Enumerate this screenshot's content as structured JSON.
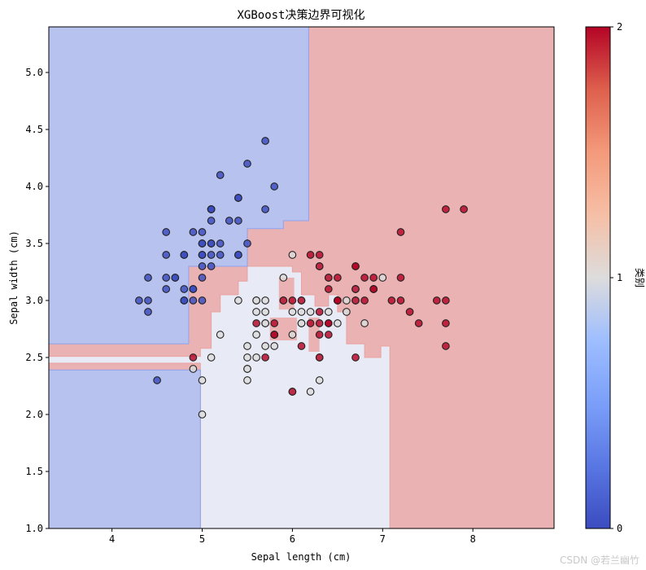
{
  "chart_data": {
    "type": "scatter",
    "title": "XGBoost决策边界可视化",
    "xlabel": "Sepal length (cm)",
    "ylabel": "Sepal width (cm)",
    "xlim": [
      3.3,
      8.9
    ],
    "ylim": [
      1.0,
      5.4
    ],
    "x_ticks": [
      "4",
      "5",
      "6",
      "7",
      "8"
    ],
    "y_ticks": [
      "1.0",
      "1.5",
      "2.0",
      "2.5",
      "3.0",
      "3.5",
      "4.0",
      "4.5",
      "5.0"
    ],
    "grid": false,
    "colorbar": {
      "label": "类别",
      "ticks": [
        "0",
        "1",
        "2"
      ],
      "colormap": "coolwarm",
      "colors": [
        "#3b4cc0",
        "#dddcdc",
        "#b40426"
      ]
    },
    "region_colors": [
      "#b7c2ee",
      "#e8ebf6",
      "#eab2b2"
    ],
    "region_edge_colors": [
      "#8fa1ee",
      "#e9a29f"
    ],
    "class0_points": [
      [
        5.1,
        3.5
      ],
      [
        4.9,
        3.0
      ],
      [
        4.7,
        3.2
      ],
      [
        4.6,
        3.1
      ],
      [
        5.0,
        3.6
      ],
      [
        5.4,
        3.9
      ],
      [
        4.6,
        3.4
      ],
      [
        5.0,
        3.4
      ],
      [
        4.4,
        2.9
      ],
      [
        4.9,
        3.1
      ],
      [
        5.4,
        3.7
      ],
      [
        4.8,
        3.4
      ],
      [
        4.8,
        3.0
      ],
      [
        4.3,
        3.0
      ],
      [
        5.8,
        4.0
      ],
      [
        5.7,
        4.4
      ],
      [
        5.4,
        3.9
      ],
      [
        5.1,
        3.5
      ],
      [
        5.7,
        3.8
      ],
      [
        5.1,
        3.8
      ],
      [
        5.4,
        3.4
      ],
      [
        5.1,
        3.7
      ],
      [
        4.6,
        3.6
      ],
      [
        5.1,
        3.3
      ],
      [
        4.8,
        3.4
      ],
      [
        5.0,
        3.0
      ],
      [
        5.0,
        3.4
      ],
      [
        5.2,
        3.5
      ],
      [
        5.2,
        3.4
      ],
      [
        4.7,
        3.2
      ],
      [
        4.8,
        3.1
      ],
      [
        5.4,
        3.4
      ],
      [
        5.2,
        4.1
      ],
      [
        5.5,
        4.2
      ],
      [
        4.9,
        3.1
      ],
      [
        5.0,
        3.2
      ],
      [
        5.5,
        3.5
      ],
      [
        4.9,
        3.6
      ],
      [
        4.4,
        3.0
      ],
      [
        5.1,
        3.4
      ],
      [
        5.0,
        3.5
      ],
      [
        4.5,
        2.3
      ],
      [
        4.4,
        3.2
      ],
      [
        5.0,
        3.5
      ],
      [
        5.1,
        3.8
      ],
      [
        4.8,
        3.0
      ],
      [
        5.1,
        3.8
      ],
      [
        4.6,
        3.2
      ],
      [
        5.3,
        3.7
      ],
      [
        5.0,
        3.3
      ]
    ],
    "class1_points": [
      [
        7.0,
        3.2
      ],
      [
        6.4,
        3.2
      ],
      [
        6.9,
        3.1
      ],
      [
        5.5,
        2.3
      ],
      [
        6.5,
        2.8
      ],
      [
        5.7,
        2.8
      ],
      [
        6.3,
        3.3
      ],
      [
        4.9,
        2.4
      ],
      [
        6.6,
        2.9
      ],
      [
        5.2,
        2.7
      ],
      [
        5.0,
        2.0
      ],
      [
        5.9,
        3.0
      ],
      [
        6.0,
        2.2
      ],
      [
        6.1,
        2.9
      ],
      [
        5.6,
        2.9
      ],
      [
        6.7,
        3.1
      ],
      [
        5.6,
        3.0
      ],
      [
        5.8,
        2.7
      ],
      [
        6.2,
        2.2
      ],
      [
        5.6,
        2.5
      ],
      [
        5.9,
        3.2
      ],
      [
        6.1,
        2.8
      ],
      [
        6.3,
        2.5
      ],
      [
        6.1,
        2.8
      ],
      [
        6.4,
        2.9
      ],
      [
        6.6,
        3.0
      ],
      [
        6.8,
        2.8
      ],
      [
        6.7,
        3.0
      ],
      [
        6.0,
        2.9
      ],
      [
        5.7,
        2.6
      ],
      [
        5.5,
        2.4
      ],
      [
        5.5,
        2.4
      ],
      [
        5.8,
        2.7
      ],
      [
        6.0,
        2.7
      ],
      [
        5.4,
        3.0
      ],
      [
        6.0,
        3.4
      ],
      [
        6.7,
        3.1
      ],
      [
        6.3,
        2.3
      ],
      [
        5.6,
        3.0
      ],
      [
        5.5,
        2.5
      ],
      [
        5.5,
        2.6
      ],
      [
        6.1,
        3.0
      ],
      [
        5.8,
        2.6
      ],
      [
        5.0,
        2.3
      ],
      [
        5.6,
        2.7
      ],
      [
        5.7,
        3.0
      ],
      [
        5.7,
        2.9
      ],
      [
        6.2,
        2.9
      ],
      [
        5.1,
        2.5
      ],
      [
        5.7,
        2.8
      ]
    ],
    "class2_points": [
      [
        6.3,
        3.3
      ],
      [
        5.8,
        2.7
      ],
      [
        7.1,
        3.0
      ],
      [
        6.3,
        2.9
      ],
      [
        6.5,
        3.0
      ],
      [
        7.6,
        3.0
      ],
      [
        4.9,
        2.5
      ],
      [
        7.3,
        2.9
      ],
      [
        6.7,
        2.5
      ],
      [
        7.2,
        3.6
      ],
      [
        6.5,
        3.2
      ],
      [
        6.4,
        2.7
      ],
      [
        6.8,
        3.0
      ],
      [
        5.7,
        2.5
      ],
      [
        5.8,
        2.8
      ],
      [
        6.4,
        3.2
      ],
      [
        6.5,
        3.0
      ],
      [
        7.7,
        3.8
      ],
      [
        7.7,
        2.6
      ],
      [
        6.0,
        2.2
      ],
      [
        6.9,
        3.2
      ],
      [
        5.6,
        2.8
      ],
      [
        7.7,
        2.8
      ],
      [
        6.3,
        2.7
      ],
      [
        6.7,
        3.3
      ],
      [
        7.2,
        3.2
      ],
      [
        6.2,
        2.8
      ],
      [
        6.1,
        3.0
      ],
      [
        6.4,
        2.8
      ],
      [
        7.2,
        3.0
      ],
      [
        7.4,
        2.8
      ],
      [
        7.9,
        3.8
      ],
      [
        6.4,
        2.8
      ],
      [
        6.3,
        2.8
      ],
      [
        6.1,
        2.6
      ],
      [
        7.7,
        3.0
      ],
      [
        6.3,
        3.4
      ],
      [
        6.4,
        3.1
      ],
      [
        6.0,
        3.0
      ],
      [
        6.9,
        3.1
      ],
      [
        6.7,
        3.1
      ],
      [
        6.9,
        3.1
      ],
      [
        5.8,
        2.7
      ],
      [
        6.8,
        3.2
      ],
      [
        6.7,
        3.3
      ],
      [
        6.7,
        3.0
      ],
      [
        6.3,
        2.5
      ],
      [
        6.5,
        3.0
      ],
      [
        6.2,
        3.4
      ],
      [
        5.9,
        3.0
      ]
    ]
  },
  "watermark": "CSDN @若兰幽竹"
}
